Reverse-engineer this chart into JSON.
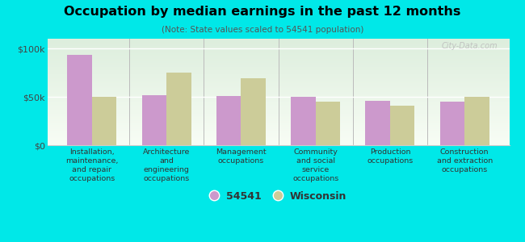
{
  "title": "Occupation by median earnings in the past 12 months",
  "subtitle": "(Note: State values scaled to 54541 population)",
  "categories": [
    "Installation,\nmaintenance,\nand repair\noccupations",
    "Architecture\nand\nengineering\noccupations",
    "Management\noccupations",
    "Community\nand social\nservice\noccupations",
    "Production\noccupations",
    "Construction\nand extraction\noccupations"
  ],
  "values_54541": [
    93000,
    52000,
    51000,
    50000,
    46000,
    45000
  ],
  "values_wisconsin": [
    50000,
    75000,
    69000,
    45000,
    41000,
    50000
  ],
  "color_54541": "#cc99cc",
  "color_wisconsin": "#cccc99",
  "background_color": "#00e8e8",
  "ylim": [
    0,
    110000
  ],
  "yticks": [
    0,
    50000,
    100000
  ],
  "yticklabels": [
    "$0",
    "$50k",
    "$100k"
  ],
  "legend_label_54541": "54541",
  "legend_label_wisconsin": "Wisconsin",
  "watermark": "City-Data.com",
  "divider_color": "#bbbbbb",
  "grid_color": "#ffffff",
  "spine_color": "#cccccc"
}
